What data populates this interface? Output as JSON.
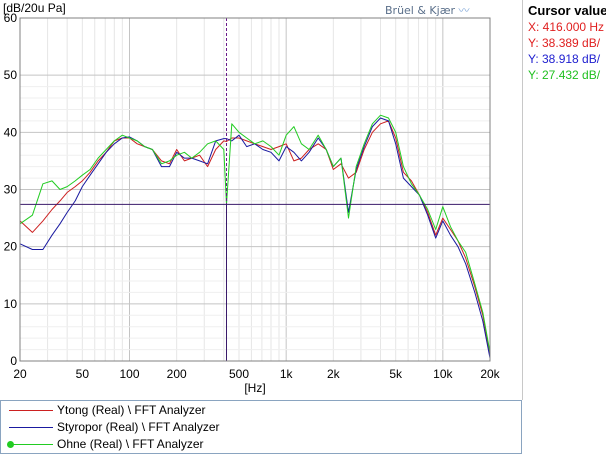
{
  "brand": {
    "text": "Brüel & Kjær"
  },
  "cursor": {
    "title": "Cursor value",
    "rows": [
      {
        "text": "X: 416.000 Hz",
        "color": "#e02020"
      },
      {
        "text": "Y: 38.389 dB/",
        "color": "#e02020"
      },
      {
        "text": "Y: 38.918 dB/",
        "color": "#2020d0"
      },
      {
        "text": "Y: 27.432 dB/",
        "color": "#20c020"
      }
    ]
  },
  "chart_data": {
    "type": "line",
    "ylabel": "[dB/20u Pa]",
    "xlabel": "[Hz]",
    "xscale": "log",
    "xlim": [
      20,
      20000
    ],
    "ylim": [
      0,
      60
    ],
    "x_ticks": [
      20,
      50,
      100,
      200,
      500,
      1000,
      2000,
      5000,
      10000,
      20000
    ],
    "x_tick_labels": [
      "20",
      "50",
      "100",
      "200",
      "500",
      "1k",
      "2k",
      "5k",
      "10k",
      "20k"
    ],
    "y_ticks": [
      0,
      10,
      20,
      30,
      40,
      50,
      60
    ],
    "y_tick_labels": [
      "0",
      "10",
      "20",
      "30",
      "40",
      "50",
      "60"
    ],
    "grid": true,
    "cursor_x": 416,
    "cursor_y": 27.4,
    "series": [
      {
        "name": "Ytong (Real) \\ FFT Analyzer",
        "color": "#cc2020",
        "x": [
          20,
          24,
          28,
          32,
          36,
          40,
          45,
          50,
          56,
          63,
          71,
          80,
          90,
          100,
          112,
          125,
          140,
          160,
          180,
          200,
          224,
          250,
          280,
          315,
          355,
          400,
          416,
          450,
          500,
          560,
          630,
          710,
          800,
          900,
          1000,
          1120,
          1250,
          1400,
          1600,
          1800,
          2000,
          2240,
          2500,
          2800,
          3150,
          3550,
          4000,
          4500,
          5000,
          5600,
          6300,
          7100,
          8000,
          9000,
          10000,
          11200,
          12500,
          14000,
          16000,
          18000,
          20000
        ],
        "y": [
          24.5,
          22.5,
          24.5,
          26.5,
          28,
          29.5,
          30.5,
          31.5,
          33,
          35,
          36.5,
          38.5,
          39,
          39,
          38,
          37.5,
          37,
          35,
          34.5,
          37,
          35,
          35.5,
          36,
          34,
          37,
          38.5,
          38.4,
          39,
          39,
          38.5,
          38,
          37.5,
          37,
          37.5,
          38,
          35,
          35.5,
          37,
          38,
          37,
          33.5,
          34.5,
          32,
          33,
          37,
          40,
          41.5,
          42,
          39,
          33,
          31.5,
          29,
          26,
          22,
          25,
          23,
          21,
          18,
          13,
          8,
          1
        ]
      },
      {
        "name": "Styropor (Real) \\ FFT Analyzer",
        "color": "#1a1aa0",
        "x": [
          20,
          24,
          28,
          32,
          36,
          40,
          45,
          50,
          56,
          63,
          71,
          80,
          90,
          100,
          112,
          125,
          140,
          160,
          180,
          200,
          224,
          250,
          280,
          315,
          355,
          400,
          416,
          450,
          500,
          560,
          630,
          710,
          800,
          900,
          1000,
          1120,
          1250,
          1400,
          1600,
          1800,
          2000,
          2240,
          2500,
          2800,
          3150,
          3550,
          4000,
          4500,
          5000,
          5600,
          6300,
          7100,
          8000,
          9000,
          10000,
          11200,
          12500,
          14000,
          16000,
          18000,
          20000
        ],
        "y": [
          20.5,
          19.5,
          19.5,
          22,
          24,
          26,
          28,
          30.5,
          32.5,
          34.5,
          36.5,
          38,
          39,
          39.2,
          38.5,
          37.5,
          37,
          34,
          34,
          36.5,
          35.5,
          35.5,
          35,
          34.5,
          38.5,
          38.9,
          38.9,
          38.5,
          39.5,
          37.5,
          38,
          37,
          36.5,
          35,
          37.5,
          36.5,
          35,
          36.5,
          39,
          37,
          34,
          35.5,
          26,
          33.5,
          37.5,
          41,
          42.5,
          42,
          38,
          32,
          30.5,
          29,
          25.5,
          21.5,
          24.5,
          22,
          20,
          17,
          12,
          7,
          0.5
        ]
      },
      {
        "name": "Ohne (Real) \\ FFT Analyzer",
        "color": "#22cc22",
        "x": [
          20,
          24,
          28,
          32,
          36,
          40,
          45,
          50,
          56,
          63,
          71,
          80,
          90,
          100,
          112,
          125,
          140,
          160,
          180,
          200,
          224,
          250,
          280,
          315,
          355,
          400,
          416,
          450,
          500,
          560,
          630,
          710,
          800,
          900,
          1000,
          1120,
          1250,
          1400,
          1600,
          1800,
          2000,
          2240,
          2500,
          2800,
          3150,
          3550,
          4000,
          4500,
          5000,
          5600,
          6300,
          7100,
          8000,
          9000,
          10000,
          11200,
          12500,
          14000,
          16000,
          18000,
          20000
        ],
        "y": [
          24,
          25.5,
          31,
          31.5,
          30,
          30.5,
          31.5,
          32.5,
          33.5,
          35.5,
          37,
          38.5,
          39.5,
          39,
          38.5,
          37.5,
          37,
          34.5,
          35,
          36,
          36.5,
          35.5,
          36.5,
          38,
          38.5,
          37,
          27.4,
          41.5,
          40,
          39,
          38,
          38.5,
          37.5,
          36,
          39.5,
          41,
          38,
          37,
          39.5,
          37,
          34,
          35.5,
          25,
          34,
          38,
          41.5,
          43,
          42.5,
          40,
          34,
          31,
          29,
          26.5,
          23,
          27,
          23.5,
          21,
          19,
          13.5,
          8.5,
          1.5
        ]
      }
    ]
  }
}
